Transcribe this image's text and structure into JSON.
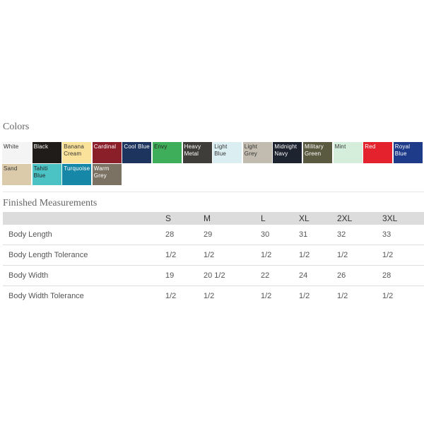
{
  "colors_heading": "Colors",
  "colors": [
    {
      "name": "White",
      "hex": "#f4f4f4",
      "text": "#333"
    },
    {
      "name": "Black",
      "hex": "#1f1c19",
      "text": "#fff"
    },
    {
      "name": "Banana Cream",
      "hex": "#fbe29a",
      "text": "#333"
    },
    {
      "name": "Cardinal",
      "hex": "#8a1f2a",
      "text": "#fff"
    },
    {
      "name": "Cool Blue",
      "hex": "#1d355e",
      "text": "#fff"
    },
    {
      "name": "Envy",
      "hex": "#3fae5a",
      "text": "#222"
    },
    {
      "name": "Heavy Metal",
      "hex": "#3e3d39",
      "text": "#fff"
    },
    {
      "name": "Light Blue",
      "hex": "#dbeef2",
      "text": "#333"
    },
    {
      "name": "Light Grey",
      "hex": "#c2bcb0",
      "text": "#333"
    },
    {
      "name": "Midnight Navy",
      "hex": "#1e2330",
      "text": "#fff"
    },
    {
      "name": "Military Green",
      "hex": "#5a5a40",
      "text": "#fff"
    },
    {
      "name": "Mint",
      "hex": "#d5eedc",
      "text": "#333"
    },
    {
      "name": "Red",
      "hex": "#e3222e",
      "text": "#fff"
    },
    {
      "name": "Royal Blue",
      "hex": "#1e3b8a",
      "text": "#fff"
    },
    {
      "name": "Sand",
      "hex": "#dccbaa",
      "text": "#333"
    },
    {
      "name": "Tahiti Blue",
      "hex": "#4bc2c4",
      "text": "#222"
    },
    {
      "name": "Turquoise",
      "hex": "#1787a8",
      "text": "#fff"
    },
    {
      "name": "Warm Grey",
      "hex": "#7b7264",
      "text": "#fff"
    }
  ],
  "measurements_heading": "Finished Measurements",
  "table": {
    "headers": [
      "",
      "S",
      "M",
      "L",
      "XL",
      "2XL",
      "3XL"
    ],
    "rows": [
      [
        "Body Length",
        "28",
        "29",
        "30",
        "31",
        "32",
        "33"
      ],
      [
        "Body Length Tolerance",
        "1/2",
        "1/2",
        "1/2",
        "1/2",
        "1/2",
        "1/2"
      ],
      [
        "Body Width",
        "19",
        "20 1/2",
        "22",
        "24",
        "26",
        "28"
      ],
      [
        "Body Width Tolerance",
        "1/2",
        "1/2",
        "1/2",
        "1/2",
        "1/2",
        "1/2"
      ]
    ]
  }
}
